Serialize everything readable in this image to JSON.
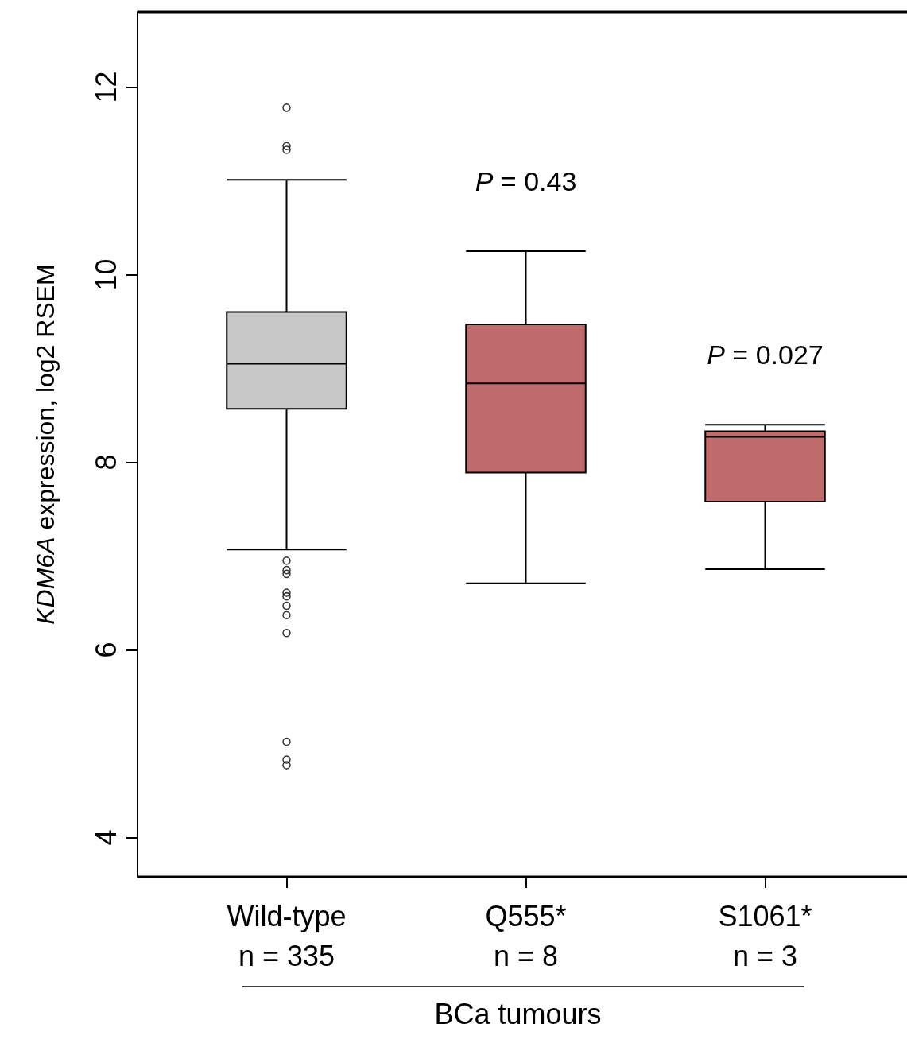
{
  "chart_data": {
    "type": "box",
    "ylabel": "KDM6A expression, log2 RSEM",
    "xlabel": "BCa tumours",
    "categories": [
      "Wild-type\nn = 335",
      "Q555*\nn = 8",
      "S1061*\nn = 3"
    ],
    "colors": [
      "#c8c8c8",
      "#c06b6b",
      "#c06b6b"
    ],
    "boxes": [
      {
        "low": 7.07,
        "q1": 8.57,
        "median": 9.05,
        "q3": 9.6,
        "high": 11.01,
        "outliers": [
          11.78,
          11.37,
          11.33,
          6.95,
          6.85,
          6.81,
          6.61,
          6.57,
          6.47,
          6.37,
          6.18,
          5.02,
          4.83,
          4.77
        ]
      },
      {
        "low": 6.71,
        "q1": 7.89,
        "median": 8.84,
        "q3": 9.47,
        "high": 10.25
      },
      {
        "low": 6.86,
        "q1": 7.58,
        "median": 8.27,
        "q3": 8.33,
        "high": 8.4
      }
    ],
    "ylim": [
      3.58,
      12.8
    ],
    "yticks": [
      4,
      6,
      8,
      10,
      12
    ],
    "grid": false,
    "annotations": [
      "P = 0.43",
      "P = 0.027"
    ]
  }
}
